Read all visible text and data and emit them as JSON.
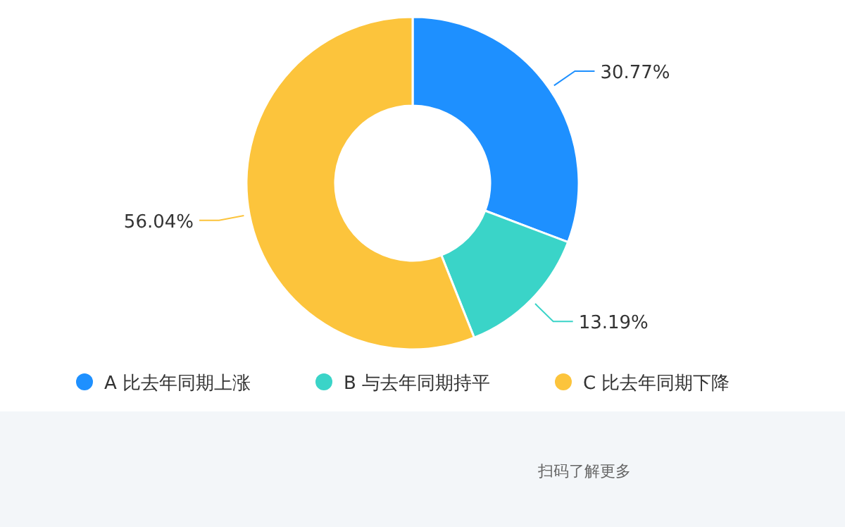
{
  "chart_data": {
    "type": "donut",
    "categories": [
      "A 比去年同期上涨",
      "B 与去年同期持平",
      "C 比去年同期下降"
    ],
    "values": [
      30.77,
      13.19,
      56.04
    ],
    "colors": [
      "#1e90ff",
      "#3ad4c8",
      "#fcc43c"
    ],
    "value_labels": [
      "30.77%",
      "13.19%",
      "56.04%"
    ],
    "legend": "bottom",
    "annotations": [
      "扫码了解更多"
    ]
  }
}
